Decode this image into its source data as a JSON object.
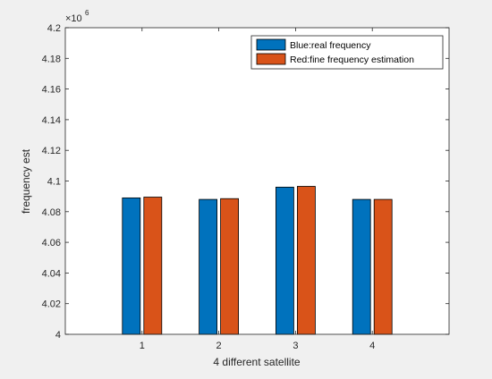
{
  "chart_data": {
    "type": "bar",
    "categories": [
      "1",
      "2",
      "3",
      "4"
    ],
    "series": [
      {
        "name": "Blue:real frequency",
        "color": "#0072BD",
        "values": [
          4089000,
          4088000,
          4096000,
          4088000
        ]
      },
      {
        "name": "Red:fine frequency estimation",
        "color": "#D95319",
        "values": [
          4089500,
          4088500,
          4096500,
          4088000
        ]
      }
    ],
    "xlabel": "4 different satellite",
    "ylabel": "frequency est",
    "ylim": [
      4000000,
      4200000
    ],
    "xlim": [
      0,
      5
    ],
    "y_ticks": [
      4,
      4.02,
      4.04,
      4.06,
      4.08,
      4.1,
      4.12,
      4.14,
      4.16,
      4.18,
      4.2
    ],
    "y_exponent": "6",
    "y_exponent_base": "×10",
    "legend_position": "top-right",
    "grid": false,
    "title": ""
  }
}
